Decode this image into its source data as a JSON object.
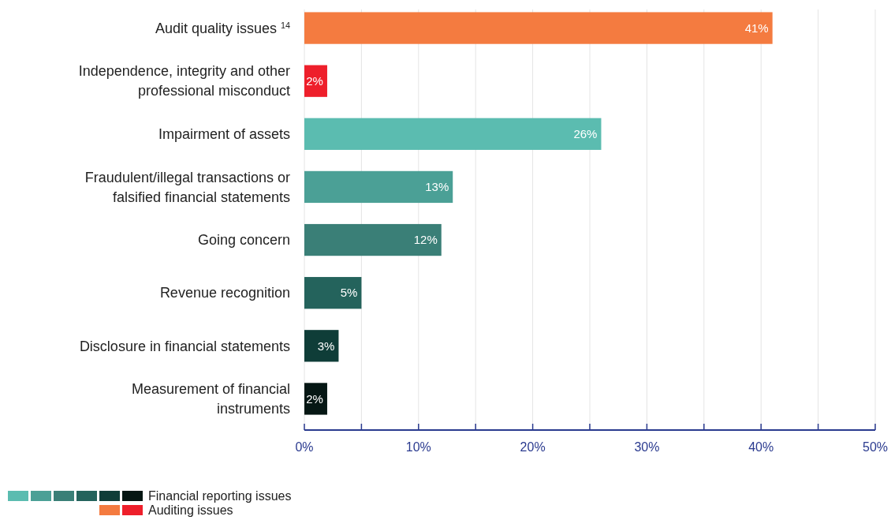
{
  "chart_data": {
    "type": "bar",
    "orientation": "horizontal",
    "categories": [
      "Audit quality issues $^{14}$",
      "Independence, integrity and other professional misconduct",
      "Impairment of assets",
      "Fraudulent/illegal transactions or falsified financial statements",
      "Going concern",
      "Revenue recognition",
      "Disclosure in financial statements",
      "Measurement of financial instruments"
    ],
    "series": [
      {
        "name": "Financial reporting issues",
        "colors": [
          null,
          null,
          "#5bbcb0",
          "#4ba096",
          "#3a7f77",
          "#24635c",
          "#0f3d38",
          "#061714"
        ],
        "values": [
          null,
          null,
          26,
          13,
          12,
          5,
          3,
          2
        ],
        "value_labels": [
          null,
          null,
          "26%",
          "13%",
          "12%",
          "5%",
          "3%",
          "2%"
        ]
      },
      {
        "name": "Auditing issues",
        "colors": [
          "#f47b40",
          "#ee1f2b",
          null,
          null,
          null,
          null,
          null,
          null
        ],
        "values": [
          41,
          2,
          null,
          null,
          null,
          null,
          null,
          null
        ],
        "value_labels": [
          "41%",
          "2%",
          null,
          null,
          null,
          null,
          null,
          null
        ]
      }
    ],
    "xlim": [
      0,
      50
    ],
    "xticks": [
      {
        "value": 0,
        "label": "0%"
      },
      {
        "value": 5,
        "label": null
      },
      {
        "value": 10,
        "label": "10%"
      },
      {
        "value": 15,
        "label": null
      },
      {
        "value": 20,
        "label": "20%"
      },
      {
        "value": 25,
        "label": null
      },
      {
        "value": 30,
        "label": "30%"
      },
      {
        "value": 35,
        "label": null
      },
      {
        "value": 40,
        "label": "40%"
      },
      {
        "value": 45,
        "label": null
      },
      {
        "value": 50,
        "label": "50%"
      }
    ],
    "grid": "x",
    "legend": "bottom left"
  }
}
